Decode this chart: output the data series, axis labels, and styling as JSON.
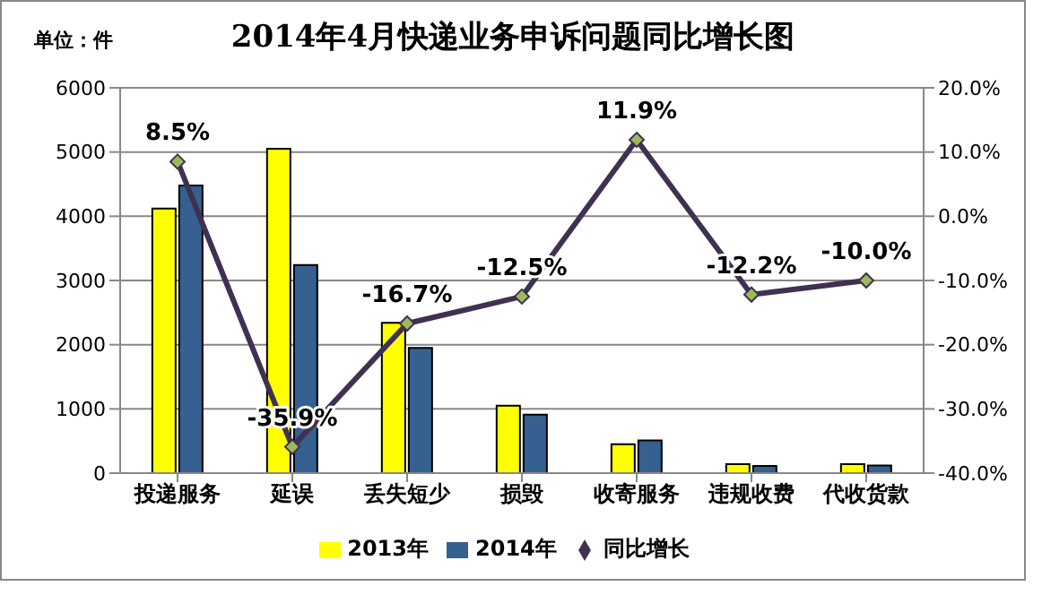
{
  "chart_data": {
    "type": "bar",
    "title": "2014年4月快递业务申诉问题同比增长图",
    "annotations": [
      "单位：件"
    ],
    "categories": [
      "投递服务",
      "延误",
      "丢失短少",
      "损毁",
      "收寄服务",
      "违规收费",
      "代收货款"
    ],
    "series": [
      {
        "name": "2013年",
        "color": "#ffff00",
        "values": [
          4120,
          5050,
          2340,
          1050,
          450,
          140,
          140
        ]
      },
      {
        "name": "2014年",
        "color": "#35608f",
        "values": [
          4480,
          3240,
          1950,
          910,
          510,
          110,
          120
        ]
      },
      {
        "name": "同比增长",
        "type": "line",
        "axis": "y2",
        "color": "#3f3151",
        "marker": "diamond",
        "values": [
          8.5,
          -35.9,
          -16.7,
          -12.5,
          11.9,
          -12.2,
          -10.0
        ],
        "value_labels": [
          "8.5%",
          "-35.9%",
          "-16.7%",
          "-12.5%",
          "11.9%",
          "-12.2%",
          "-10.0%"
        ]
      }
    ],
    "ylim": [
      0,
      6000
    ],
    "yticks": [
      0,
      1000,
      2000,
      3000,
      4000,
      5000,
      6000
    ],
    "y2lim": [
      -40,
      20
    ],
    "y2ticks": [
      {
        "value": -40,
        "label": "-40.0%"
      },
      {
        "value": -30,
        "label": "-30.0%"
      },
      {
        "value": -20,
        "label": "-20.0%"
      },
      {
        "value": -10,
        "label": "-10.0%"
      },
      {
        "value": 0,
        "label": "0.0%"
      },
      {
        "value": 10,
        "label": "10.0%"
      },
      {
        "value": 20,
        "label": "20.0%"
      }
    ],
    "grid": "y",
    "legend": "bottom"
  }
}
